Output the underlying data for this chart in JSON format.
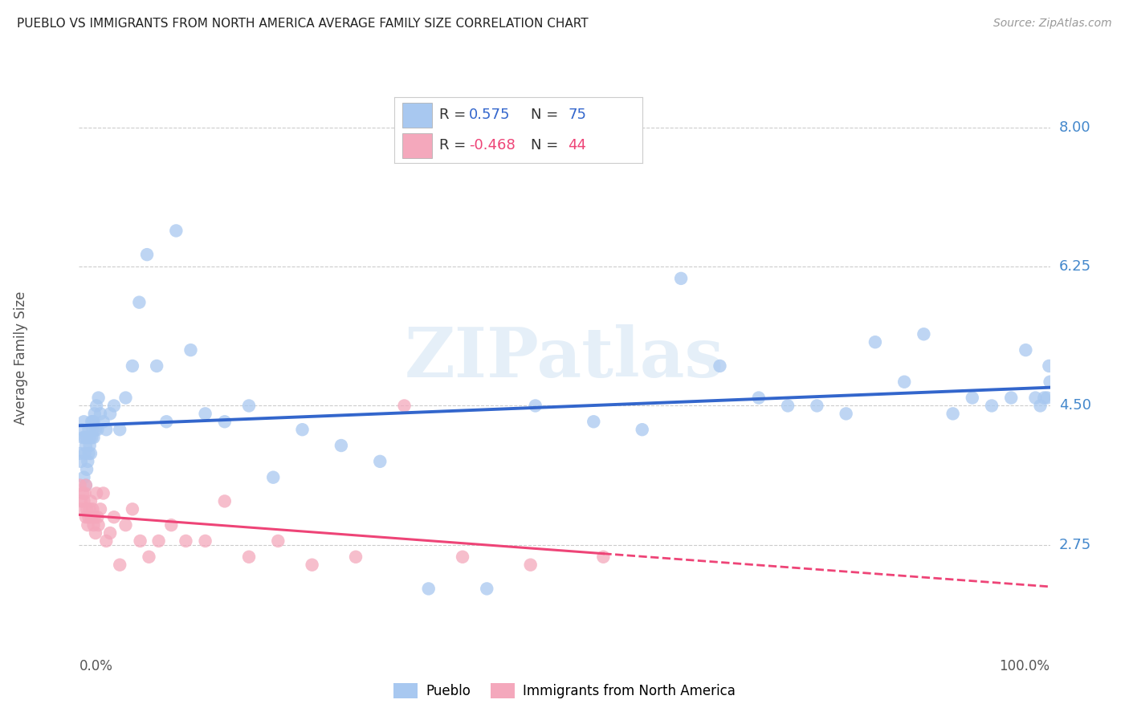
{
  "title": "PUEBLO VS IMMIGRANTS FROM NORTH AMERICA AVERAGE FAMILY SIZE CORRELATION CHART",
  "source": "Source: ZipAtlas.com",
  "ylabel": "Average Family Size",
  "yticks": [
    2.75,
    4.5,
    6.25,
    8.0
  ],
  "blue_r": "0.575",
  "blue_n": "75",
  "pink_r": "-0.468",
  "pink_n": "44",
  "blue_scatter_color": "#a8c8f0",
  "pink_scatter_color": "#f4a8bc",
  "blue_line_color": "#3366cc",
  "pink_line_color": "#ee4477",
  "blue_label": "Pueblo",
  "pink_label": "Immigrants from North America",
  "yaxis_label_color": "#4488cc",
  "xmin": 0.0,
  "xmax": 1.0,
  "ymin": 1.5,
  "ymax": 8.7,
  "blue_scatter_x": [
    0.001,
    0.002,
    0.003,
    0.004,
    0.005,
    0.005,
    0.006,
    0.006,
    0.007,
    0.007,
    0.008,
    0.008,
    0.009,
    0.01,
    0.01,
    0.011,
    0.011,
    0.012,
    0.013,
    0.013,
    0.014,
    0.014,
    0.015,
    0.015,
    0.016,
    0.017,
    0.018,
    0.019,
    0.02,
    0.022,
    0.025,
    0.028,
    0.032,
    0.036,
    0.042,
    0.048,
    0.055,
    0.062,
    0.07,
    0.08,
    0.09,
    0.1,
    0.115,
    0.13,
    0.15,
    0.175,
    0.2,
    0.23,
    0.27,
    0.31,
    0.36,
    0.42,
    0.47,
    0.53,
    0.58,
    0.62,
    0.66,
    0.7,
    0.73,
    0.76,
    0.79,
    0.82,
    0.85,
    0.87,
    0.9,
    0.92,
    0.94,
    0.96,
    0.975,
    0.985,
    0.99,
    0.994,
    0.997,
    0.999,
    1.0
  ],
  "blue_scatter_y": [
    3.9,
    3.8,
    4.2,
    4.1,
    3.6,
    4.3,
    3.9,
    4.1,
    3.5,
    4.0,
    3.7,
    4.1,
    3.8,
    3.9,
    4.2,
    4.0,
    4.1,
    3.9,
    4.1,
    4.3,
    4.2,
    4.3,
    4.1,
    4.3,
    4.4,
    4.2,
    4.5,
    4.2,
    4.6,
    4.4,
    4.3,
    4.2,
    4.4,
    4.5,
    4.2,
    4.6,
    5.0,
    5.8,
    6.4,
    5.0,
    4.3,
    6.7,
    5.2,
    4.4,
    4.3,
    4.5,
    3.6,
    4.2,
    4.0,
    3.8,
    2.2,
    2.2,
    4.5,
    4.3,
    4.2,
    6.1,
    5.0,
    4.6,
    4.5,
    4.5,
    4.4,
    5.3,
    4.8,
    5.4,
    4.4,
    4.6,
    4.5,
    4.6,
    5.2,
    4.6,
    4.5,
    4.6,
    4.6,
    5.0,
    4.8
  ],
  "pink_scatter_x": [
    0.001,
    0.002,
    0.003,
    0.004,
    0.005,
    0.006,
    0.007,
    0.007,
    0.008,
    0.009,
    0.01,
    0.011,
    0.012,
    0.013,
    0.014,
    0.015,
    0.016,
    0.017,
    0.018,
    0.019,
    0.02,
    0.022,
    0.025,
    0.028,
    0.032,
    0.036,
    0.042,
    0.048,
    0.055,
    0.063,
    0.072,
    0.082,
    0.095,
    0.11,
    0.13,
    0.15,
    0.175,
    0.205,
    0.24,
    0.285,
    0.335,
    0.395,
    0.465,
    0.54
  ],
  "pink_scatter_y": [
    3.5,
    3.3,
    3.2,
    3.4,
    3.3,
    3.4,
    3.1,
    3.5,
    3.2,
    3.0,
    3.1,
    3.2,
    3.3,
    3.1,
    3.2,
    3.0,
    3.1,
    2.9,
    3.4,
    3.1,
    3.0,
    3.2,
    3.4,
    2.8,
    2.9,
    3.1,
    2.5,
    3.0,
    3.2,
    2.8,
    2.6,
    2.8,
    3.0,
    2.8,
    2.8,
    3.3,
    2.6,
    2.8,
    2.5,
    2.6,
    4.5,
    2.6,
    2.5,
    2.6
  ]
}
